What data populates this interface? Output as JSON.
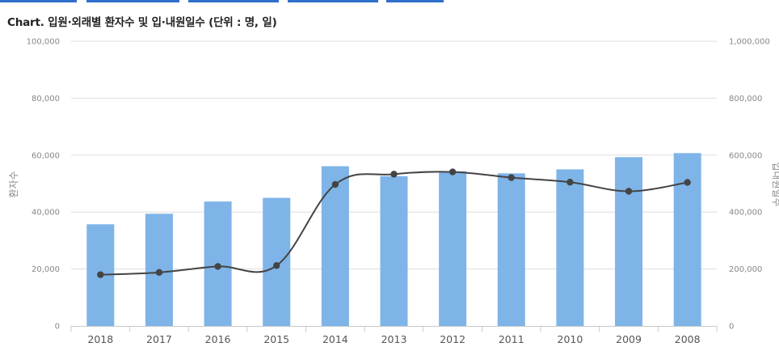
{
  "tabs": [
    "",
    "",
    "",
    ""
  ],
  "title": "Chart. 입원·외래별 환자수 및 입·내원일수 (단위 : 명, 일)",
  "colors": {
    "bar": "#7eb4e8",
    "line": "#444444",
    "grid": "#dddddd",
    "tab": "#2f6fca"
  },
  "chart_data": {
    "type": "bar",
    "title": "Chart. 입원·외래별 환자수 및 입·내원일수 (단위 : 명, 일)",
    "categories": [
      "2018",
      "2017",
      "2016",
      "2015",
      "2014",
      "2013",
      "2012",
      "2011",
      "2010",
      "2009",
      "2008"
    ],
    "series": [
      {
        "type": "bar",
        "axis": "left",
        "values": [
          35700,
          39400,
          43700,
          45000,
          56100,
          52600,
          54300,
          53600,
          55000,
          59300,
          60700
        ]
      },
      {
        "type": "line",
        "axis": "right",
        "values": [
          180000,
          188000,
          209000,
          212000,
          497000,
          533000,
          541000,
          521000,
          505000,
          473000,
          504000
        ]
      }
    ],
    "ylabel": "환자수",
    "y2label": "입내원일수",
    "ylim": [
      0,
      100000
    ],
    "y2lim": [
      0,
      1000000
    ],
    "yticks": [
      "0",
      "20,000",
      "40,000",
      "60,000",
      "80,000",
      "100,000"
    ],
    "y2ticks": [
      "0",
      "200,000",
      "400,000",
      "600,000",
      "800,000",
      "1,000,000"
    ],
    "grid": true,
    "legend": "none"
  }
}
